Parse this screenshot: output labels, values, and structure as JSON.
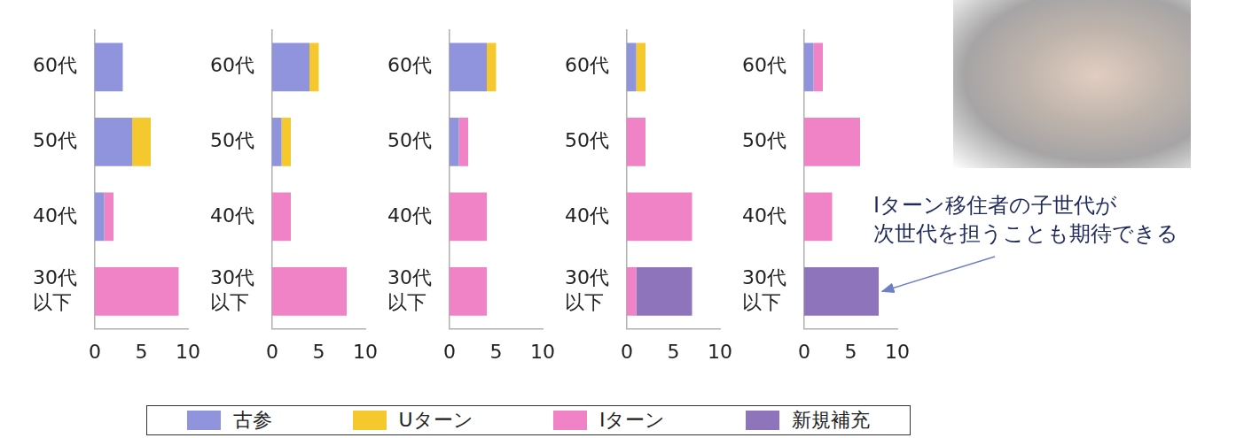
{
  "chart_data": [
    {
      "type": "bar",
      "orientation": "horizontal",
      "stacked": true,
      "grid": false,
      "legend": "bottom",
      "categories": [
        "60代",
        "50代",
        "40代",
        "30代\n以下"
      ],
      "series": [
        {
          "name": "古参",
          "color": "#8f94dc",
          "values": [
            3,
            4,
            1,
            0
          ]
        },
        {
          "name": "Uターン",
          "color": "#f5c92e",
          "values": [
            0,
            2,
            0,
            0
          ]
        },
        {
          "name": "Iターン",
          "color": "#f083c6",
          "values": [
            0,
            0,
            1,
            9
          ]
        }
      ],
      "xlim": [
        0,
        10
      ],
      "xticks": [
        0,
        5,
        10
      ]
    },
    {
      "type": "bar",
      "orientation": "horizontal",
      "stacked": true,
      "grid": false,
      "legend": "bottom",
      "categories": [
        "60代",
        "50代",
        "40代",
        "30代\n以下"
      ],
      "series": [
        {
          "name": "古参",
          "color": "#8f94dc",
          "values": [
            4,
            1,
            0,
            0
          ]
        },
        {
          "name": "Uターン",
          "color": "#f5c92e",
          "values": [
            1,
            1,
            0,
            0
          ]
        },
        {
          "name": "Iターン",
          "color": "#f083c6",
          "values": [
            0,
            0,
            2,
            8
          ]
        }
      ],
      "xlim": [
        0,
        10
      ],
      "xticks": [
        0,
        5,
        10
      ]
    },
    {
      "type": "bar",
      "orientation": "horizontal",
      "stacked": true,
      "grid": false,
      "legend": "bottom",
      "categories": [
        "60代",
        "50代",
        "40代",
        "30代\n以下"
      ],
      "series": [
        {
          "name": "古参",
          "color": "#8f94dc",
          "values": [
            4,
            1,
            0,
            0
          ]
        },
        {
          "name": "Uターン",
          "color": "#f5c92e",
          "values": [
            1,
            0,
            0,
            0
          ]
        },
        {
          "name": "Iターン",
          "color": "#f083c6",
          "values": [
            0,
            1,
            4,
            4
          ]
        }
      ],
      "xlim": [
        0,
        10
      ],
      "xticks": [
        0,
        5,
        10
      ]
    },
    {
      "type": "bar",
      "orientation": "horizontal",
      "stacked": true,
      "grid": false,
      "legend": "bottom",
      "categories": [
        "60代",
        "50代",
        "40代",
        "30代\n以下"
      ],
      "series": [
        {
          "name": "古参",
          "color": "#8f94dc",
          "values": [
            1,
            0,
            0,
            0
          ]
        },
        {
          "name": "Uターン",
          "color": "#f5c92e",
          "values": [
            1,
            0,
            0,
            0
          ]
        },
        {
          "name": "Iターン",
          "color": "#f083c6",
          "values": [
            0,
            2,
            7,
            1
          ]
        },
        {
          "name": "新規補充",
          "color": "#8e74bb",
          "values": [
            0,
            0,
            0,
            6
          ]
        }
      ],
      "xlim": [
        0,
        10
      ],
      "xticks": [
        0,
        5,
        10
      ]
    },
    {
      "type": "bar",
      "orientation": "horizontal",
      "stacked": true,
      "grid": false,
      "legend": "bottom",
      "categories": [
        "60代",
        "50代",
        "40代",
        "30代\n以下"
      ],
      "series": [
        {
          "name": "古参",
          "color": "#8f94dc",
          "values": [
            1,
            0,
            0,
            0
          ]
        },
        {
          "name": "Iターン",
          "color": "#f083c6",
          "values": [
            1,
            6,
            3,
            0
          ]
        },
        {
          "name": "新規補充",
          "color": "#8e74bb",
          "values": [
            0,
            0,
            0,
            8
          ]
        }
      ],
      "xlim": [
        0,
        10
      ],
      "xticks": [
        0,
        5,
        10
      ],
      "annotation": "Iターン移住者の子世代が\n次世代を担うことも期待できる"
    }
  ]
}
